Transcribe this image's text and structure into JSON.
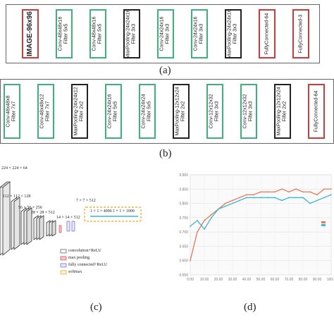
{
  "panel_a": {
    "caption": "(a)",
    "blocks": [
      {
        "line1": "IMAGE-96x96",
        "line2": "",
        "color": "red"
      },
      {
        "line1": "Conv-48x48x16",
        "line2": "Filter 5x5",
        "color": "green"
      },
      {
        "line1": "Conv-48x48x16",
        "line2": "Filter 5x5",
        "color": "green"
      },
      {
        "line1": "MaxPooling-24x24x16",
        "line2": "Filter 3x3",
        "color": "black"
      },
      {
        "line1": "Conv-24x24x16",
        "line2": "Filter 3x3",
        "color": "green"
      },
      {
        "line1": "Conv-24x24x16",
        "line2": "Filter 3x3",
        "color": "green"
      },
      {
        "line1": "MaxPooling-24x24x16",
        "line2": "Filter 3x3",
        "color": "black"
      },
      {
        "line1": "FullyConnected-64",
        "line2": "",
        "color": "red"
      },
      {
        "line1": "FullyConnected-3",
        "line2": "",
        "color": "red"
      }
    ]
  },
  "panel_b": {
    "caption": "(b)",
    "blocks": [
      {
        "line1": "Conv-48x48x8",
        "line2": "Filter 7x7",
        "color": "green"
      },
      {
        "line1": "Conv-48x48x12",
        "line2": "Filter 7x7",
        "color": "green"
      },
      {
        "line1": "MaxPooling-24x24x12",
        "line2": "Filter 2x2",
        "color": "black"
      },
      {
        "line1": "Conv-24x24x16",
        "line2": "Filter 5x5",
        "color": "green"
      },
      {
        "line1": "Conv-24x24x24",
        "line2": "Filter 5x5",
        "color": "green"
      },
      {
        "line1": "MaxPooling-12x12x24",
        "line2": "Filter 2x2",
        "color": "black"
      },
      {
        "line1": "Conv-12x12x32",
        "line2": "Filter 3x3",
        "color": "green"
      },
      {
        "line1": "Conv-12x12x32",
        "line2": "Filter 3x3",
        "color": "green"
      },
      {
        "line1": "MaxPooling-12x12x24",
        "line2": "Filter 2x2",
        "color": "black"
      },
      {
        "line1": "FullyConnected-64",
        "line2": "",
        "color": "red"
      }
    ]
  },
  "panel_c": {
    "caption": "(c)",
    "dims": [
      "224 × 224 × 64",
      "112 × 112 × 128",
      "56 × 56 × 256",
      "28 × 28 × 512",
      "14 × 14 × 512",
      "7 × 7 × 512",
      "1 × 1 × 4096",
      "1 × 1 × 1000"
    ],
    "legend": [
      "convolution+ReLU",
      "max pooling",
      "fully connected+ReLU",
      "softmax"
    ]
  },
  "panel_d": {
    "caption": "(d)",
    "xticks": [
      "0.00",
      "10.00",
      "20.00",
      "30.00",
      "40.00",
      "50.00",
      "60.00",
      "70.00",
      "80.00",
      "90.00",
      "100.0"
    ],
    "yticks": [
      "0.900",
      "0.850",
      "0.800",
      "0.750",
      "0.700",
      "0.650",
      "0.600",
      "0.550"
    ]
  },
  "chart_data": {
    "type": "line",
    "xlim": [
      0,
      100
    ],
    "ylim": [
      0.55,
      0.9
    ],
    "grid": true,
    "x": [
      0,
      5,
      10,
      15,
      20,
      25,
      30,
      35,
      40,
      45,
      50,
      55,
      60,
      65,
      70,
      75,
      80,
      85,
      90,
      95,
      100
    ],
    "series": [
      {
        "color": "#e8775c",
        "values": [
          0.6,
          0.7,
          0.74,
          0.76,
          0.78,
          0.8,
          0.81,
          0.82,
          0.83,
          0.83,
          0.84,
          0.84,
          0.84,
          0.85,
          0.84,
          0.85,
          0.84,
          0.84,
          0.83,
          0.85,
          0.85
        ]
      },
      {
        "color": "#3cb7cf",
        "values": [
          0.72,
          0.74,
          0.71,
          0.75,
          0.78,
          0.79,
          0.8,
          0.81,
          0.82,
          0.82,
          0.82,
          0.82,
          0.82,
          0.81,
          0.82,
          0.82,
          0.82,
          0.8,
          0.81,
          0.82,
          0.83
        ]
      }
    ]
  }
}
